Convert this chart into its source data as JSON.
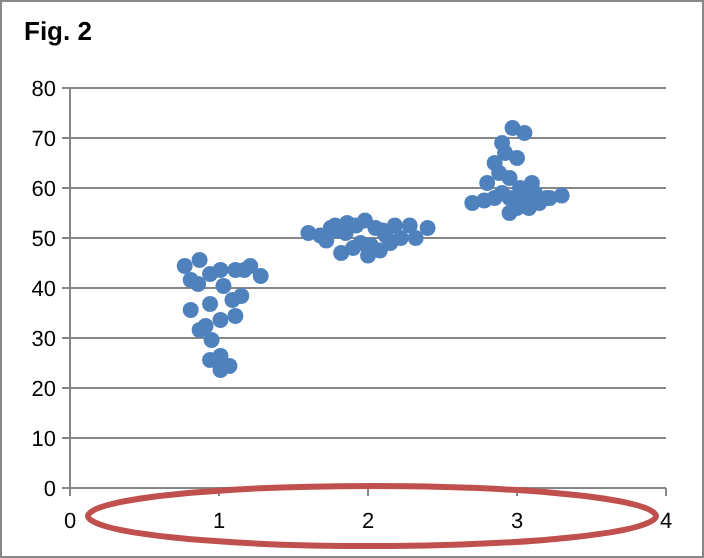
{
  "chart_data": {
    "type": "scatter",
    "title": "Fig. 2",
    "x": [
      0.77,
      0.81,
      0.87,
      0.94,
      1.01,
      1.11,
      1.21,
      1.28,
      1.03,
      1.09,
      1.15,
      0.81,
      0.91,
      1.01,
      1.11,
      0.94,
      0.95,
      1.01,
      0.94,
      1.01,
      1.07,
      0.87,
      1.17,
      0.86,
      1.6,
      1.68,
      1.75,
      1.8,
      1.86,
      1.92,
      1.98,
      2.05,
      2.1,
      2.18,
      2.32,
      2.4,
      1.72,
      1.82,
      1.9,
      2.0,
      2.08,
      2.15,
      2.22,
      1.85,
      1.95,
      2.02,
      2.12,
      1.78,
      2.28,
      2.7,
      2.78,
      2.85,
      2.9,
      2.95,
      3.05,
      3.12,
      3.2,
      3.3,
      2.8,
      2.88,
      2.95,
      3.02,
      3.1,
      2.85,
      2.92,
      3.0,
      2.9,
      2.97,
      3.05,
      2.95,
      3.0,
      3.08,
      3.15,
      3.22
    ],
    "values": [
      44.4,
      41.6,
      45.6,
      42.8,
      43.6,
      43.6,
      44.4,
      42.4,
      40.4,
      37.6,
      38.4,
      35.6,
      32.4,
      33.6,
      34.4,
      36.8,
      29.6,
      26.4,
      25.6,
      23.6,
      24.4,
      31.6,
      43.6,
      40.8,
      51,
      50.5,
      52,
      51.5,
      53,
      52.5,
      53.5,
      52,
      51.5,
      52.5,
      50,
      52,
      49.5,
      47,
      48,
      46.5,
      47.5,
      49,
      50,
      51,
      49,
      48.5,
      50.5,
      52.5,
      52.5,
      57,
      57.5,
      58,
      59,
      58,
      58,
      59,
      58,
      58.5,
      61,
      63,
      62,
      60,
      61,
      65,
      67,
      66,
      69,
      72,
      71,
      55,
      56,
      56,
      57,
      58
    ],
    "color": "#4f81bd",
    "marker": "circle",
    "xlim": [
      0,
      4
    ],
    "xticks": [
      0,
      1,
      2,
      3,
      4
    ],
    "ylim": [
      0,
      80
    ],
    "yticks": [
      0,
      10,
      20,
      30,
      40,
      50,
      60,
      70,
      80
    ],
    "grid": "y"
  }
}
